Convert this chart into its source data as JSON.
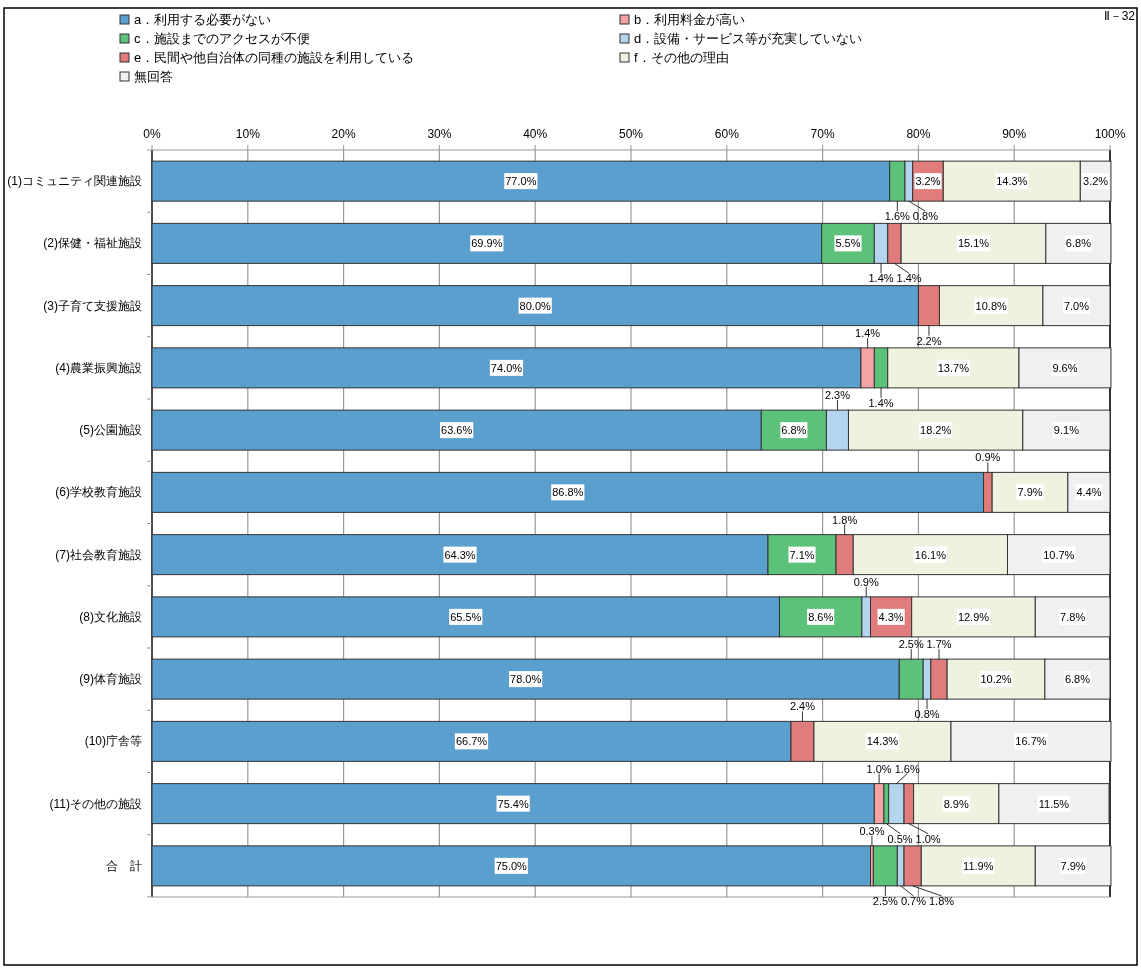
{
  "chart_data": {
    "type": "bar",
    "orientation": "horizontal",
    "stacked": true,
    "grid": "x",
    "legend": "top",
    "annotations": [
      "Ⅱ－32"
    ],
    "categories": [
      "(1)コミュニティ関連施設",
      "(2)保健・福祉施設",
      "(3)子育て支援施設",
      "(4)農業振興施設",
      "(5)公園施設",
      "(6)学校教育施設",
      "(7)社会教育施設",
      "(8)文化施設",
      "(9)体育施設",
      "(10)庁舎等",
      "(11)その他の施設",
      "合　計"
    ],
    "xlim": [
      0,
      100
    ],
    "xticks": [
      {
        "value": 0,
        "label": "0%"
      },
      {
        "value": 10,
        "label": "10%"
      },
      {
        "value": 20,
        "label": "20%"
      },
      {
        "value": 30,
        "label": "30%"
      },
      {
        "value": 40,
        "label": "40%"
      },
      {
        "value": 50,
        "label": "50%"
      },
      {
        "value": 60,
        "label": "60%"
      },
      {
        "value": 70,
        "label": "70%"
      },
      {
        "value": 80,
        "label": "80%"
      },
      {
        "value": 90,
        "label": "90%"
      },
      {
        "value": 100,
        "label": "100%"
      }
    ],
    "series": [
      {
        "name": "a．利用する必要がない",
        "color": "#5b9fcf",
        "values": [
          77.0,
          69.9,
          80.0,
          74.0,
          63.6,
          86.8,
          64.3,
          65.5,
          78.0,
          66.7,
          75.4,
          75.0
        ],
        "value_labels": [
          "77.0%",
          "69.9%",
          "80.0%",
          "74.0%",
          "63.6%",
          "86.8%",
          "64.3%",
          "65.5%",
          "78.0%",
          "66.7%",
          "75.4%",
          "75.0%"
        ]
      },
      {
        "name": "b．利用料金が高い",
        "color": "#f5a3a3",
        "values": [
          null,
          null,
          null,
          1.4,
          null,
          null,
          null,
          null,
          null,
          null,
          1.0,
          0.3
        ],
        "value_labels": [
          null,
          null,
          null,
          "1.4%",
          null,
          null,
          null,
          null,
          null,
          null,
          "1.0%",
          "0.3%"
        ]
      },
      {
        "name": "c．施設までのアクセスが不便",
        "color": "#5cc27a",
        "values": [
          1.6,
          5.5,
          null,
          1.4,
          6.8,
          null,
          7.1,
          8.6,
          2.5,
          null,
          0.5,
          2.5
        ],
        "value_labels": [
          "1.6%",
          "5.5%",
          null,
          "1.4%",
          "6.8%",
          null,
          "7.1%",
          "8.6%",
          "2.5%",
          null,
          "0.5%",
          "2.5%"
        ]
      },
      {
        "name": "d．設備・サービス等が充実していない",
        "color": "#b3d6ee",
        "values": [
          0.8,
          1.4,
          null,
          null,
          2.3,
          null,
          null,
          0.9,
          0.8,
          null,
          1.6,
          0.7
        ],
        "value_labels": [
          "0.8%",
          "1.4%",
          null,
          null,
          "2.3%",
          null,
          null,
          "0.9%",
          "0.8%",
          null,
          "1.6%",
          "0.7%"
        ]
      },
      {
        "name": "e．民間や他自治体の同種の施設を利用している",
        "color": "#e07c7c",
        "values": [
          3.2,
          1.4,
          2.2,
          null,
          null,
          0.9,
          1.8,
          4.3,
          1.7,
          2.4,
          1.0,
          1.8
        ],
        "value_labels": [
          "3.2%",
          "1.4%",
          "2.2%",
          null,
          null,
          "0.9%",
          "1.8%",
          "4.3%",
          "1.7%",
          "2.4%",
          "1.0%",
          "1.8%"
        ]
      },
      {
        "name": "f．その他の理由",
        "color": "#eef3e0",
        "values": [
          14.3,
          15.1,
          10.8,
          13.7,
          18.2,
          7.9,
          16.1,
          12.9,
          10.2,
          14.3,
          8.9,
          11.9
        ],
        "value_labels": [
          "14.3%",
          "15.1%",
          "10.8%",
          "13.7%",
          "18.2%",
          "7.9%",
          "16.1%",
          "12.9%",
          "10.2%",
          "14.3%",
          "8.9%",
          "11.9%"
        ]
      },
      {
        "name": "無回答",
        "color": "#f0f0f0",
        "values": [
          3.2,
          6.8,
          7.0,
          9.6,
          9.1,
          4.4,
          10.7,
          7.8,
          6.8,
          16.7,
          11.5,
          7.9
        ],
        "value_labels": [
          "3.2%",
          "6.8%",
          "7.0%",
          "9.6%",
          "9.1%",
          "4.4%",
          "10.7%",
          "7.8%",
          "6.8%",
          "16.7%",
          "11.5%",
          "7.9%"
        ]
      }
    ]
  }
}
